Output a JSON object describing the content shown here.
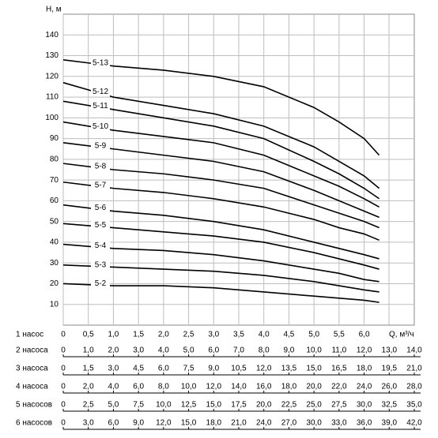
{
  "chart_data": {
    "type": "line",
    "y_label": "H, м",
    "x_label": "Q, м³/ч",
    "x_row_label": "1 насос",
    "x": [
      0,
      1,
      2,
      3,
      4,
      5,
      5.5,
      6,
      6.3
    ],
    "xlim": [
      0,
      7
    ],
    "ylim": [
      0,
      150
    ],
    "grid": true,
    "color": "#000000",
    "yticks": [
      10,
      20,
      30,
      40,
      50,
      60,
      70,
      80,
      90,
      100,
      110,
      120,
      130,
      140
    ],
    "xticks": [
      0,
      {
        "value": 0.5,
        "label": "0,5"
      },
      {
        "value": 1,
        "label": "1,0"
      },
      {
        "value": 1.5,
        "label": "1,5"
      },
      {
        "value": 2,
        "label": "2,0"
      },
      {
        "value": 2.5,
        "label": "2,5"
      },
      {
        "value": 3,
        "label": "3,0"
      },
      {
        "value": 3.5,
        "label": "3,5"
      },
      {
        "value": 4,
        "label": "4,0"
      },
      {
        "value": 4.5,
        "label": "4,5"
      },
      {
        "value": 5,
        "label": "5,0"
      },
      {
        "value": 5.5,
        "label": "5,5"
      },
      {
        "value": 6,
        "label": "6,0"
      }
    ],
    "series": [
      {
        "name": "5-13",
        "values": [
          128,
          125,
          123,
          120,
          115,
          105,
          98,
          90,
          82
        ]
      },
      {
        "name": "5-12",
        "values": [
          117,
          110,
          106,
          102,
          96,
          86,
          79,
          72,
          66
        ]
      },
      {
        "name": "5-11",
        "values": [
          108,
          104,
          100,
          96,
          90,
          79,
          73,
          66,
          61
        ]
      },
      {
        "name": "5-10",
        "values": [
          98,
          94,
          91,
          88,
          82,
          72,
          67,
          61,
          57
        ]
      },
      {
        "name": "5-9",
        "values": [
          88,
          85,
          82,
          79,
          74,
          65,
          60,
          55,
          52
        ]
      },
      {
        "name": "5-8",
        "values": [
          78,
          75,
          73,
          70,
          66,
          58,
          54,
          50,
          47
        ]
      },
      {
        "name": "5-7",
        "values": [
          69,
          66,
          64,
          61,
          57,
          51,
          47,
          44,
          41
        ]
      },
      {
        "name": "5-6",
        "values": [
          58,
          55,
          53,
          50,
          46,
          40,
          37,
          34,
          32
        ]
      },
      {
        "name": "5-5",
        "values": [
          49,
          47,
          45,
          43,
          40,
          35,
          32,
          29,
          27
        ]
      },
      {
        "name": "5-4",
        "values": [
          39,
          37,
          36,
          34,
          31,
          27,
          25,
          22,
          21
        ]
      },
      {
        "name": "5-3",
        "values": [
          29,
          28,
          27,
          26,
          24,
          21,
          19,
          17,
          16
        ]
      },
      {
        "name": "5-2",
        "values": [
          20,
          19,
          19,
          18,
          16,
          14,
          13,
          12,
          11
        ]
      }
    ],
    "pump_scales": [
      {
        "label": "2 насоса",
        "xlim": [
          0,
          14
        ],
        "xticks": [
          0,
          {
            "value": 1,
            "label": "1,0"
          },
          {
            "value": 2,
            "label": "2,0"
          },
          {
            "value": 3,
            "label": "3,0"
          },
          {
            "value": 4,
            "label": "4,0"
          },
          {
            "value": 5,
            "label": "5,0"
          },
          {
            "value": 6,
            "label": "6,0"
          },
          {
            "value": 7,
            "label": "7,0"
          },
          {
            "value": 8,
            "label": "8,0"
          },
          {
            "value": 9,
            "label": "9,0"
          },
          {
            "value": 10,
            "label": "10,0"
          },
          {
            "value": 11,
            "label": "11,0"
          },
          {
            "value": 12,
            "label": "12,0"
          },
          {
            "value": 13,
            "label": "13,0"
          },
          {
            "value": 14,
            "label": "14,0"
          }
        ]
      },
      {
        "label": "3 насоса",
        "xlim": [
          0,
          21
        ],
        "xticks": [
          0,
          {
            "value": 1.5,
            "label": "1,5"
          },
          {
            "value": 3,
            "label": "3,0"
          },
          {
            "value": 4.5,
            "label": "4,5"
          },
          {
            "value": 6,
            "label": "6,0"
          },
          {
            "value": 7.5,
            "label": "7,5"
          },
          {
            "value": 9,
            "label": "9,0"
          },
          {
            "value": 10.5,
            "label": "10,5"
          },
          {
            "value": 12,
            "label": "12,0"
          },
          {
            "value": 13.5,
            "label": "13,5"
          },
          {
            "value": 15,
            "label": "15,0"
          },
          {
            "value": 16.5,
            "label": "16,5"
          },
          {
            "value": 18,
            "label": "18,0"
          },
          {
            "value": 19.5,
            "label": "19,5"
          },
          {
            "value": 21,
            "label": "21,0"
          }
        ]
      },
      {
        "label": "4 насоса",
        "xlim": [
          0,
          28
        ],
        "xticks": [
          0,
          {
            "value": 2,
            "label": "2,0"
          },
          {
            "value": 4,
            "label": "4,0"
          },
          {
            "value": 6,
            "label": "6,0"
          },
          {
            "value": 8,
            "label": "8,0"
          },
          {
            "value": 10,
            "label": "10,0"
          },
          {
            "value": 12,
            "label": "12,0"
          },
          {
            "value": 14,
            "label": "14,0"
          },
          {
            "value": 16,
            "label": "16,0"
          },
          {
            "value": 18,
            "label": "18,0"
          },
          {
            "value": 20,
            "label": "20,0"
          },
          {
            "value": 22,
            "label": "22,0"
          },
          {
            "value": 24,
            "label": "24,0"
          },
          {
            "value": 26,
            "label": "26,0"
          },
          {
            "value": 28,
            "label": "28,0"
          }
        ]
      },
      {
        "label": "5 насосов",
        "xlim": [
          0,
          35
        ],
        "xticks": [
          0,
          {
            "value": 2.5,
            "label": "2,5"
          },
          {
            "value": 5,
            "label": "5,0"
          },
          {
            "value": 7.5,
            "label": "7,5"
          },
          {
            "value": 10,
            "label": "10,0"
          },
          {
            "value": 12.5,
            "label": "12,5"
          },
          {
            "value": 15,
            "label": "15,0"
          },
          {
            "value": 17.5,
            "label": "17,5"
          },
          {
            "value": 20,
            "label": "20,0"
          },
          {
            "value": 22.5,
            "label": "22,5"
          },
          {
            "value": 25,
            "label": "25,0"
          },
          {
            "value": 27.5,
            "label": "27,5"
          },
          {
            "value": 30,
            "label": "30,0"
          },
          {
            "value": 32.5,
            "label": "32,5"
          },
          {
            "value": 35,
            "label": "35,0"
          }
        ]
      },
      {
        "label": "6 насосов",
        "xlim": [
          0,
          42
        ],
        "xticks": [
          0,
          {
            "value": 3,
            "label": "3,0"
          },
          {
            "value": 6,
            "label": "6,0"
          },
          {
            "value": 9,
            "label": "9,0"
          },
          {
            "value": 12,
            "label": "12,0"
          },
          {
            "value": 15,
            "label": "15,0"
          },
          {
            "value": 18,
            "label": "18,0"
          },
          {
            "value": 21,
            "label": "21,0"
          },
          {
            "value": 24,
            "label": "24,0"
          },
          {
            "value": 27,
            "label": "27,0"
          },
          {
            "value": 30,
            "label": "30,0"
          },
          {
            "value": 33,
            "label": "33,0"
          },
          {
            "value": 36,
            "label": "36,0"
          },
          {
            "value": 39,
            "label": "39,0"
          },
          {
            "value": 42,
            "label": "42,0"
          }
        ]
      }
    ]
  }
}
